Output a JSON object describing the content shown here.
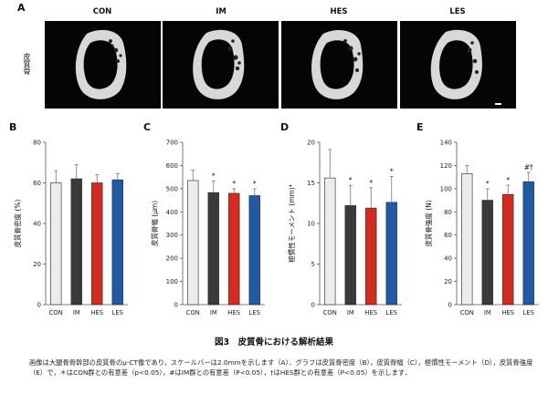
{
  "panel_a": {
    "letter": "A",
    "side_label": "皮質骨",
    "groups": [
      "CON",
      "IM",
      "HES",
      "LES"
    ]
  },
  "figure_title": "図3　皮質骨における解析結果",
  "caption": "画像は大腿骨骨幹部の皮質骨のμ-CT像であり，スケールバーは2.0mmを示します（A）．グラフは皮質骨密度（B），皮質骨幅（C），極慣性モーメント（D），皮質骨強度（E）で，＊はCON群との有意差（p<0.05），#はIM群との有意差（P<0.05），†はHES群との有意差（P<0.05）を示します．",
  "colors": {
    "CON": "#ececec",
    "IM": "#3a3a3a",
    "HES": "#d52b1e",
    "LES": "#1f5aa6"
  },
  "chart_data": [
    {
      "letter": "B",
      "type": "bar",
      "categories": [
        "CON",
        "IM",
        "HES",
        "LES"
      ],
      "values": [
        60,
        62,
        60,
        61.5
      ],
      "errors": [
        6,
        7,
        4,
        3
      ],
      "markers": [
        "",
        "",
        "",
        ""
      ],
      "ylabel": "皮質骨密度 (%)",
      "ylim": [
        0,
        80
      ],
      "ticks": [
        0,
        20,
        40,
        60,
        80
      ]
    },
    {
      "letter": "C",
      "type": "bar",
      "categories": [
        "CON",
        "IM",
        "HES",
        "LES"
      ],
      "values": [
        535,
        483,
        480,
        470
      ],
      "errors": [
        45,
        50,
        20,
        30
      ],
      "markers": [
        "",
        "*",
        "*",
        "*"
      ],
      "ylabel": "皮質骨幅 (μm)",
      "ylim": [
        0,
        700
      ],
      "ticks": [
        0,
        100,
        200,
        300,
        400,
        500,
        600,
        700
      ]
    },
    {
      "letter": "D",
      "type": "bar",
      "categories": [
        "CON",
        "IM",
        "HES",
        "LES"
      ],
      "values": [
        15.6,
        12.2,
        11.9,
        12.6
      ],
      "errors": [
        3.5,
        2.5,
        2.5,
        3.2
      ],
      "markers": [
        "",
        "*",
        "*",
        "*"
      ],
      "ylabel": "極慣性モーメント (mm)⁴",
      "ylim": [
        0,
        20
      ],
      "ticks": [
        0,
        5,
        10,
        15,
        20
      ]
    },
    {
      "letter": "E",
      "type": "bar",
      "categories": [
        "CON",
        "IM",
        "HES",
        "LES"
      ],
      "values": [
        113,
        90,
        95,
        106
      ],
      "errors": [
        7,
        10,
        8,
        8
      ],
      "markers": [
        "",
        "*",
        "*",
        "#†"
      ],
      "ylabel": "皮質骨強度 (N)",
      "ylim": [
        0,
        140
      ],
      "ticks": [
        0,
        20,
        40,
        60,
        80,
        100,
        120,
        140
      ]
    }
  ]
}
